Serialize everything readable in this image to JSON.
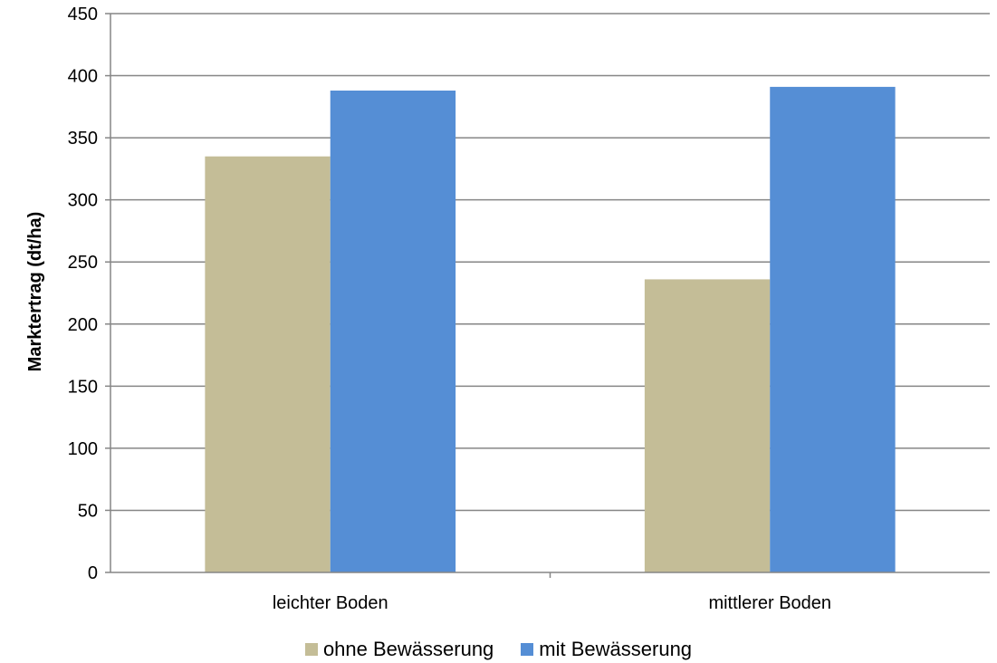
{
  "chart_data": {
    "type": "bar",
    "categories": [
      "leichter Boden",
      "mittlerer Boden"
    ],
    "series": [
      {
        "name": "ohne Bewässerung",
        "values": [
          335,
          236
        ],
        "color": "#c4bd97"
      },
      {
        "name": "mit Bewässerung",
        "values": [
          388,
          391
        ],
        "color": "#558ed5"
      }
    ],
    "title": "",
    "xlabel": "",
    "ylabel": "Marktertrag (dt/ha)",
    "ylim": [
      0,
      450
    ],
    "yticks": [
      "0",
      "50",
      "100",
      "150",
      "200",
      "250",
      "300",
      "350",
      "400",
      "450"
    ],
    "grid": true,
    "legend_position": "bottom"
  }
}
